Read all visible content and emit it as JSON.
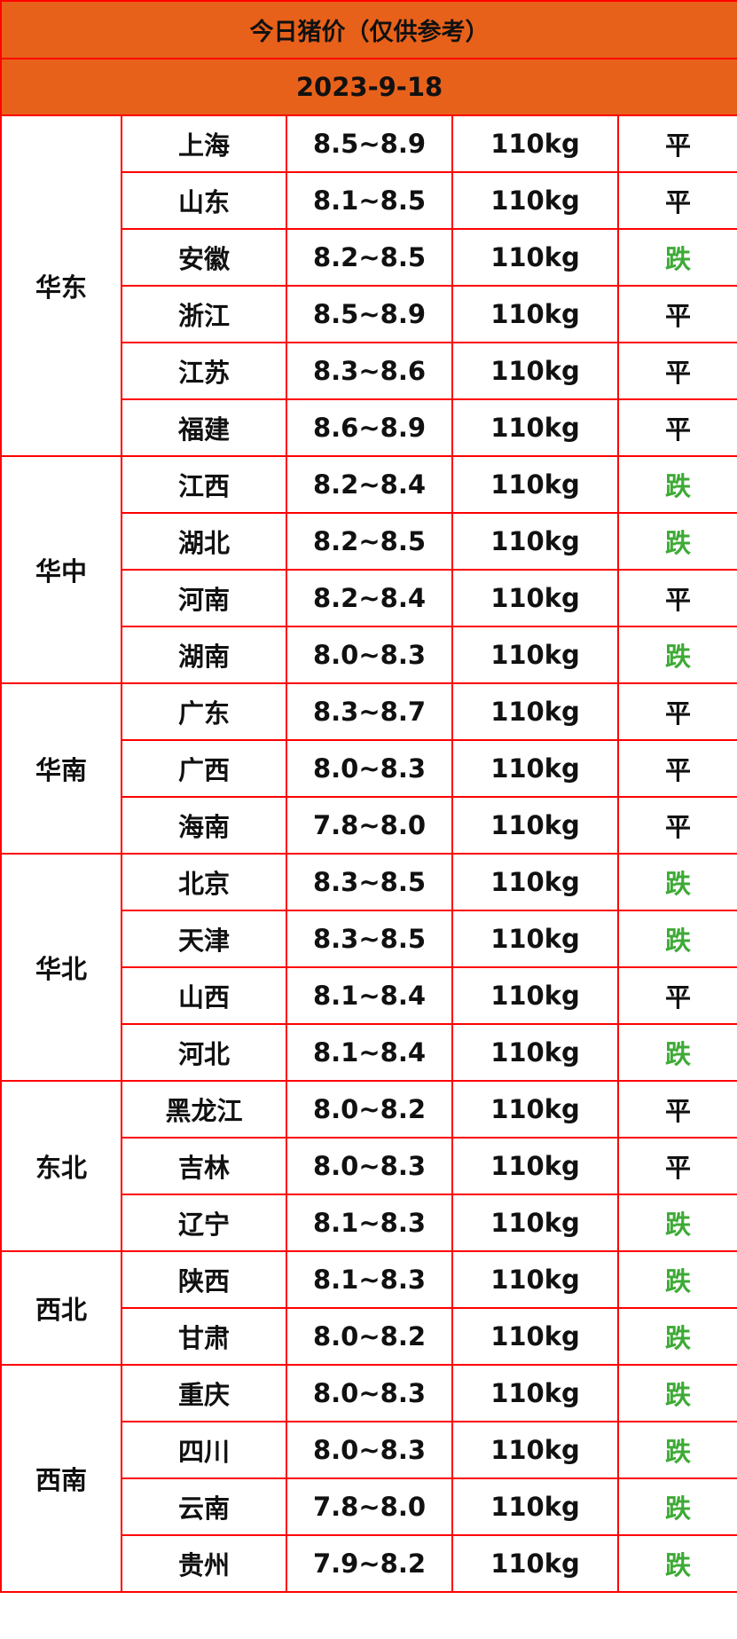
{
  "title": "今日猪价（仅供参考）",
  "date": "2023-9-18",
  "colors": {
    "header_bg": "#e8611a",
    "border": "#ff0000",
    "down": "#3daa35",
    "flat": "#111111"
  },
  "groups": [
    {
      "region": "华东",
      "rows": [
        {
          "province": "上海",
          "price": "8.5~8.9",
          "weight": "110kg",
          "trend": "平"
        },
        {
          "province": "山东",
          "price": "8.1~8.5",
          "weight": "110kg",
          "trend": "平"
        },
        {
          "province": "安徽",
          "price": "8.2~8.5",
          "weight": "110kg",
          "trend": "跌"
        },
        {
          "province": "浙江",
          "price": "8.5~8.9",
          "weight": "110kg",
          "trend": "平"
        },
        {
          "province": "江苏",
          "price": "8.3~8.6",
          "weight": "110kg",
          "trend": "平"
        },
        {
          "province": "福建",
          "price": "8.6~8.9",
          "weight": "110kg",
          "trend": "平"
        }
      ]
    },
    {
      "region": "华中",
      "rows": [
        {
          "province": "江西",
          "price": "8.2~8.4",
          "weight": "110kg",
          "trend": "跌"
        },
        {
          "province": "湖北",
          "price": "8.2~8.5",
          "weight": "110kg",
          "trend": "跌"
        },
        {
          "province": "河南",
          "price": "8.2~8.4",
          "weight": "110kg",
          "trend": "平"
        },
        {
          "province": "湖南",
          "price": "8.0~8.3",
          "weight": "110kg",
          "trend": "跌"
        }
      ]
    },
    {
      "region": "华南",
      "rows": [
        {
          "province": "广东",
          "price": "8.3~8.7",
          "weight": "110kg",
          "trend": "平"
        },
        {
          "province": "广西",
          "price": "8.0~8.3",
          "weight": "110kg",
          "trend": "平"
        },
        {
          "province": "海南",
          "price": "7.8~8.0",
          "weight": "110kg",
          "trend": "平"
        }
      ]
    },
    {
      "region": "华北",
      "rows": [
        {
          "province": "北京",
          "price": "8.3~8.5",
          "weight": "110kg",
          "trend": "跌"
        },
        {
          "province": "天津",
          "price": "8.3~8.5",
          "weight": "110kg",
          "trend": "跌"
        },
        {
          "province": "山西",
          "price": "8.1~8.4",
          "weight": "110kg",
          "trend": "平"
        },
        {
          "province": "河北",
          "price": "8.1~8.4",
          "weight": "110kg",
          "trend": "跌"
        }
      ]
    },
    {
      "region": "东北",
      "rows": [
        {
          "province": "黑龙江",
          "price": "8.0~8.2",
          "weight": "110kg",
          "trend": "平"
        },
        {
          "province": "吉林",
          "price": "8.0~8.3",
          "weight": "110kg",
          "trend": "平"
        },
        {
          "province": "辽宁",
          "price": "8.1~8.3",
          "weight": "110kg",
          "trend": "跌"
        }
      ]
    },
    {
      "region": "西北",
      "rows": [
        {
          "province": "陕西",
          "price": "8.1~8.3",
          "weight": "110kg",
          "trend": "跌"
        },
        {
          "province": "甘肃",
          "price": "8.0~8.2",
          "weight": "110kg",
          "trend": "跌"
        }
      ]
    },
    {
      "region": "西南",
      "rows": [
        {
          "province": "重庆",
          "price": "8.0~8.3",
          "weight": "110kg",
          "trend": "跌"
        },
        {
          "province": "四川",
          "price": "8.0~8.3",
          "weight": "110kg",
          "trend": "跌"
        },
        {
          "province": "云南",
          "price": "7.8~8.0",
          "weight": "110kg",
          "trend": "跌"
        },
        {
          "province": "贵州",
          "price": "7.9~8.2",
          "weight": "110kg",
          "trend": "跌"
        }
      ]
    }
  ]
}
